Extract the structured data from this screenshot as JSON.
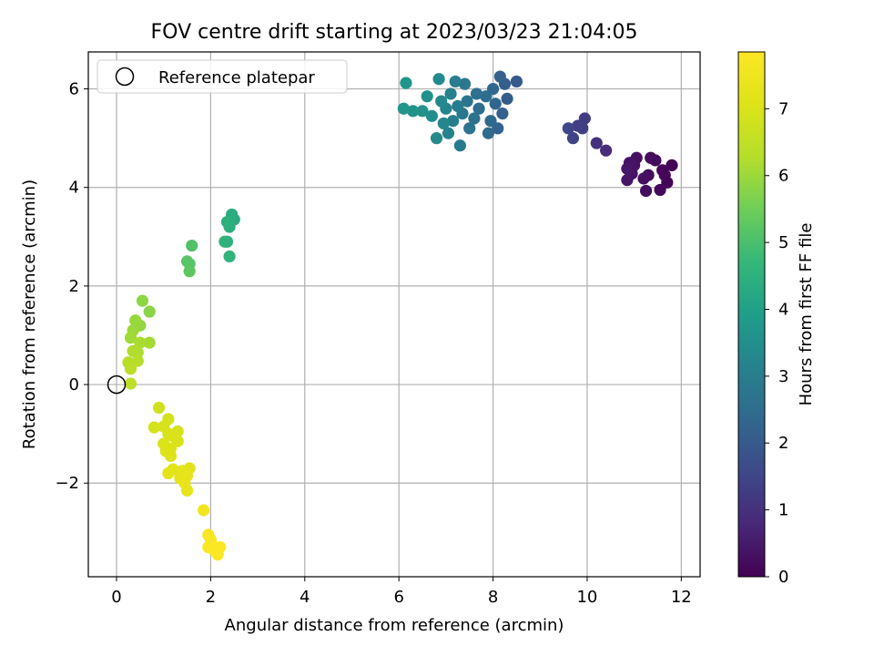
{
  "chart_data": {
    "type": "scatter",
    "title": "FOV centre drift starting at 2023/03/23 21:04:05",
    "xlabel": "Angular distance from reference (arcmin)",
    "ylabel": "Rotation from reference (arcmin)",
    "xlim": [
      -0.6,
      12.4
    ],
    "ylim": [
      -3.9,
      6.75
    ],
    "xticks": [
      0,
      2,
      4,
      6,
      8,
      10,
      12
    ],
    "yticks": [
      -2,
      0,
      2,
      4,
      6
    ],
    "grid": true,
    "legend": {
      "position": "top-left",
      "entries": [
        "Reference platepar"
      ]
    },
    "colormap": "viridis",
    "colorbar": {
      "label": "Hours from first FF file",
      "range": [
        0,
        7.85
      ],
      "ticks": [
        0,
        1,
        2,
        3,
        4,
        5,
        6,
        7
      ]
    },
    "reference_point": {
      "x": 0,
      "y": 0,
      "label": "Reference platepar"
    },
    "series": [
      {
        "name": "Hours from first FF file",
        "points": [
          {
            "x": 11.8,
            "y": 4.45,
            "c": 0.05
          },
          {
            "x": 11.7,
            "y": 4.1,
            "c": 0.08
          },
          {
            "x": 11.65,
            "y": 4.25,
            "c": 0.1
          },
          {
            "x": 11.6,
            "y": 4.35,
            "c": 0.12
          },
          {
            "x": 11.55,
            "y": 3.95,
            "c": 0.15
          },
          {
            "x": 11.45,
            "y": 4.55,
            "c": 0.18
          },
          {
            "x": 11.35,
            "y": 4.6,
            "c": 0.2
          },
          {
            "x": 11.3,
            "y": 4.25,
            "c": 0.22
          },
          {
            "x": 11.25,
            "y": 3.93,
            "c": 0.25
          },
          {
            "x": 11.2,
            "y": 4.18,
            "c": 0.28
          },
          {
            "x": 11.05,
            "y": 4.6,
            "c": 0.3
          },
          {
            "x": 11.0,
            "y": 4.45,
            "c": 0.33
          },
          {
            "x": 10.95,
            "y": 4.28,
            "c": 0.35
          },
          {
            "x": 10.9,
            "y": 4.5,
            "c": 0.38
          },
          {
            "x": 10.85,
            "y": 4.15,
            "c": 0.4
          },
          {
            "x": 10.85,
            "y": 4.38,
            "c": 0.42
          },
          {
            "x": 10.4,
            "y": 4.75,
            "c": 0.9
          },
          {
            "x": 10.2,
            "y": 4.9,
            "c": 1.0
          },
          {
            "x": 9.95,
            "y": 5.4,
            "c": 1.25
          },
          {
            "x": 9.9,
            "y": 5.2,
            "c": 1.3
          },
          {
            "x": 9.8,
            "y": 5.25,
            "c": 1.35
          },
          {
            "x": 9.7,
            "y": 5.0,
            "c": 1.45
          },
          {
            "x": 9.6,
            "y": 5.2,
            "c": 1.5
          },
          {
            "x": 8.5,
            "y": 6.15,
            "c": 2.0
          },
          {
            "x": 8.3,
            "y": 5.8,
            "c": 2.05
          },
          {
            "x": 8.25,
            "y": 6.1,
            "c": 2.1
          },
          {
            "x": 8.2,
            "y": 5.5,
            "c": 2.15
          },
          {
            "x": 8.15,
            "y": 6.25,
            "c": 2.2
          },
          {
            "x": 8.1,
            "y": 5.2,
            "c": 2.25
          },
          {
            "x": 8.05,
            "y": 5.7,
            "c": 2.3
          },
          {
            "x": 8.0,
            "y": 6.0,
            "c": 2.35
          },
          {
            "x": 7.95,
            "y": 5.35,
            "c": 2.4
          },
          {
            "x": 7.9,
            "y": 5.1,
            "c": 2.45
          },
          {
            "x": 7.85,
            "y": 5.85,
            "c": 2.5
          },
          {
            "x": 7.7,
            "y": 5.6,
            "c": 2.55
          },
          {
            "x": 7.65,
            "y": 5.9,
            "c": 2.6
          },
          {
            "x": 7.6,
            "y": 5.4,
            "c": 2.65
          },
          {
            "x": 7.5,
            "y": 5.2,
            "c": 2.7
          },
          {
            "x": 7.45,
            "y": 5.75,
            "c": 2.75
          },
          {
            "x": 7.4,
            "y": 6.1,
            "c": 2.8
          },
          {
            "x": 7.35,
            "y": 5.5,
            "c": 2.85
          },
          {
            "x": 7.3,
            "y": 4.85,
            "c": 2.9
          },
          {
            "x": 7.25,
            "y": 5.65,
            "c": 2.95
          },
          {
            "x": 7.2,
            "y": 6.15,
            "c": 3.0
          },
          {
            "x": 7.15,
            "y": 5.35,
            "c": 3.05
          },
          {
            "x": 7.1,
            "y": 5.9,
            "c": 3.1
          },
          {
            "x": 7.05,
            "y": 5.1,
            "c": 3.15
          },
          {
            "x": 7.0,
            "y": 5.6,
            "c": 3.2
          },
          {
            "x": 6.95,
            "y": 5.3,
            "c": 3.25
          },
          {
            "x": 6.9,
            "y": 5.75,
            "c": 3.3
          },
          {
            "x": 6.85,
            "y": 6.2,
            "c": 3.35
          },
          {
            "x": 6.8,
            "y": 5.0,
            "c": 3.4
          },
          {
            "x": 6.7,
            "y": 5.45,
            "c": 3.45
          },
          {
            "x": 6.6,
            "y": 5.85,
            "c": 3.5
          },
          {
            "x": 6.5,
            "y": 5.55,
            "c": 3.55
          },
          {
            "x": 6.3,
            "y": 5.55,
            "c": 3.6
          },
          {
            "x": 6.15,
            "y": 6.12,
            "c": 3.65
          },
          {
            "x": 6.1,
            "y": 5.6,
            "c": 3.7
          },
          {
            "x": 2.5,
            "y": 3.35,
            "c": 4.3
          },
          {
            "x": 2.45,
            "y": 3.45,
            "c": 4.35
          },
          {
            "x": 2.4,
            "y": 3.2,
            "c": 4.4
          },
          {
            "x": 2.35,
            "y": 3.3,
            "c": 4.45
          },
          {
            "x": 2.35,
            "y": 2.9,
            "c": 4.5
          },
          {
            "x": 2.3,
            "y": 2.9,
            "c": 4.55
          },
          {
            "x": 2.4,
            "y": 2.6,
            "c": 4.6
          },
          {
            "x": 1.6,
            "y": 2.82,
            "c": 5.1
          },
          {
            "x": 1.55,
            "y": 2.45,
            "c": 5.15
          },
          {
            "x": 1.5,
            "y": 2.5,
            "c": 5.2
          },
          {
            "x": 1.55,
            "y": 2.3,
            "c": 5.25
          },
          {
            "x": 0.7,
            "y": 1.48,
            "c": 5.8
          },
          {
            "x": 0.55,
            "y": 1.7,
            "c": 5.85
          },
          {
            "x": 0.5,
            "y": 1.2,
            "c": 5.9
          },
          {
            "x": 0.4,
            "y": 1.3,
            "c": 5.95
          },
          {
            "x": 0.35,
            "y": 1.1,
            "c": 6.0
          },
          {
            "x": 0.3,
            "y": 0.95,
            "c": 6.05
          },
          {
            "x": 0.7,
            "y": 0.85,
            "c": 6.1
          },
          {
            "x": 0.5,
            "y": 0.85,
            "c": 6.15
          },
          {
            "x": 0.45,
            "y": 0.65,
            "c": 6.2
          },
          {
            "x": 0.35,
            "y": 0.68,
            "c": 6.25
          },
          {
            "x": 0.45,
            "y": 0.48,
            "c": 6.3
          },
          {
            "x": 0.25,
            "y": 0.45,
            "c": 6.35
          },
          {
            "x": 0.3,
            "y": 0.32,
            "c": 6.4
          },
          {
            "x": 0.3,
            "y": 0.02,
            "c": 6.45
          },
          {
            "x": 0.9,
            "y": -0.47,
            "c": 6.8
          },
          {
            "x": 1.1,
            "y": -0.7,
            "c": 6.85
          },
          {
            "x": 0.8,
            "y": -0.87,
            "c": 6.88
          },
          {
            "x": 1.3,
            "y": -0.95,
            "c": 6.9
          },
          {
            "x": 1.0,
            "y": -0.85,
            "c": 6.93
          },
          {
            "x": 1.1,
            "y": -1.0,
            "c": 6.95
          },
          {
            "x": 1.2,
            "y": -1.05,
            "c": 6.98
          },
          {
            "x": 1.3,
            "y": -1.15,
            "c": 7.0
          },
          {
            "x": 1.0,
            "y": -1.2,
            "c": 7.02
          },
          {
            "x": 1.15,
            "y": -1.3,
            "c": 7.05
          },
          {
            "x": 1.05,
            "y": -1.35,
            "c": 7.08
          },
          {
            "x": 1.15,
            "y": -1.45,
            "c": 7.1
          },
          {
            "x": 1.55,
            "y": -1.7,
            "c": 7.15
          },
          {
            "x": 1.2,
            "y": -1.72,
            "c": 7.18
          },
          {
            "x": 1.1,
            "y": -1.8,
            "c": 7.2
          },
          {
            "x": 1.4,
            "y": -1.75,
            "c": 7.22
          },
          {
            "x": 1.35,
            "y": -1.9,
            "c": 7.25
          },
          {
            "x": 1.5,
            "y": -1.85,
            "c": 7.28
          },
          {
            "x": 1.45,
            "y": -2.0,
            "c": 7.3
          },
          {
            "x": 1.5,
            "y": -2.15,
            "c": 7.33
          },
          {
            "x": 1.85,
            "y": -2.55,
            "c": 7.55
          },
          {
            "x": 1.95,
            "y": -3.05,
            "c": 7.7
          },
          {
            "x": 2.0,
            "y": -3.15,
            "c": 7.72
          },
          {
            "x": 1.95,
            "y": -3.3,
            "c": 7.75
          },
          {
            "x": 2.1,
            "y": -3.3,
            "c": 7.78
          },
          {
            "x": 2.05,
            "y": -3.35,
            "c": 7.8
          },
          {
            "x": 2.15,
            "y": -3.45,
            "c": 7.82
          },
          {
            "x": 2.2,
            "y": -3.3,
            "c": 7.84
          }
        ]
      }
    ]
  }
}
